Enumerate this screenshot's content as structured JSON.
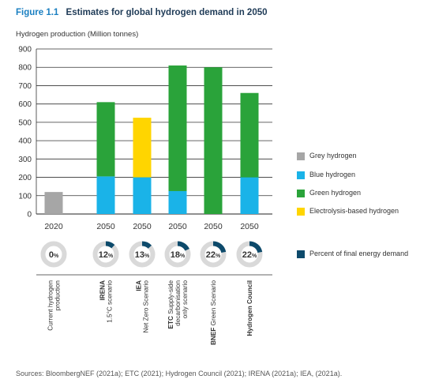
{
  "figure": {
    "label": "Figure 1.1",
    "title": "Estimates for global hydrogen demand in 2050",
    "sources": "Sources: BloombergNEF (2021a); ETC (2021); Hydrogen Council (2021); IRENA (2021a); IEA, (2021a)."
  },
  "chart_data": {
    "type": "bar",
    "stacked": true,
    "ylabel": "Hydrogen production (Million tonnes)",
    "ylim": [
      0,
      900
    ],
    "yticks": [
      0,
      100,
      200,
      300,
      400,
      500,
      600,
      700,
      800,
      900
    ],
    "grid": "horizontal",
    "legend_position": "right",
    "categories": [
      {
        "year": "2020",
        "label": "Current hydrogen production",
        "bold": "",
        "rest": "Current hydrogen production"
      },
      {
        "year": "2050",
        "label": "IRENA 1.5°C scenario",
        "bold": "IRENA",
        "rest": "1.5°C scenario"
      },
      {
        "year": "2050",
        "label": "IEA Net Zero Scenario",
        "bold": "IEA",
        "rest": "Net Zero Scenario"
      },
      {
        "year": "2050",
        "label": "ETC Supply-side decarbonisation only scenario",
        "bold": "ETC",
        "rest": "Supply-side decarbonisation only scenario"
      },
      {
        "year": "2050",
        "label": "BNEF Green Scenario",
        "bold": "BNEF",
        "rest": "Green Scenario"
      },
      {
        "year": "2050",
        "label": "Hydrogen Council",
        "bold": "Hydrogen Council",
        "rest": ""
      }
    ],
    "series": [
      {
        "name": "Grey hydrogen",
        "color": "#a6a6a6",
        "values": [
          120,
          0,
          0,
          0,
          0,
          0
        ]
      },
      {
        "name": "Blue hydrogen",
        "color": "#1ab3e8",
        "values": [
          0,
          205,
          200,
          125,
          0,
          200
        ]
      },
      {
        "name": "Green hydrogen",
        "color": "#2aa33a",
        "values": [
          0,
          405,
          0,
          685,
          800,
          460
        ]
      },
      {
        "name": "Electrolysis-based hydrogen",
        "color": "#ffd500",
        "values": [
          0,
          0,
          325,
          0,
          0,
          0
        ]
      }
    ],
    "energy_share": {
      "name": "Percent of final energy demand",
      "color": "#0d4a6b",
      "values": [
        0,
        12,
        13,
        18,
        22,
        22
      ],
      "labels": [
        "0%",
        "12%",
        "13%",
        "18%",
        "22%",
        "22%"
      ]
    }
  }
}
